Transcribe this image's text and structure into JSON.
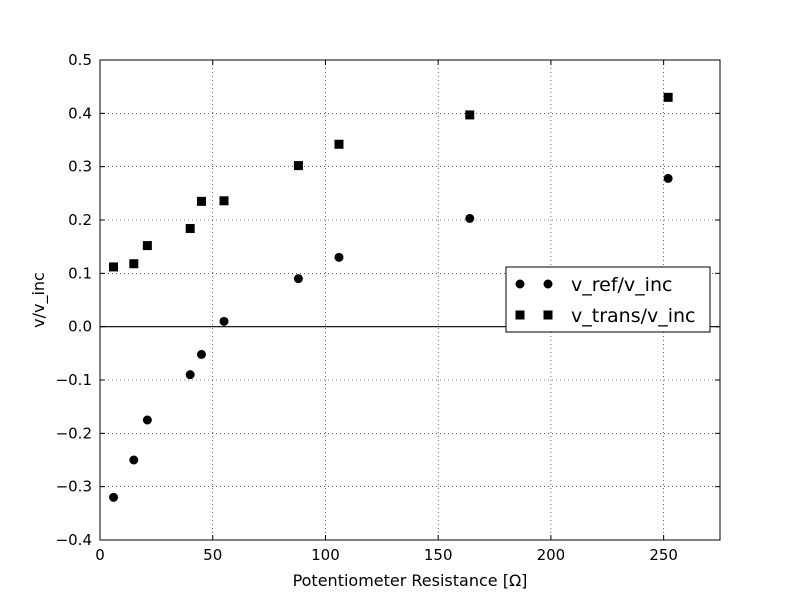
{
  "chart_data": {
    "type": "scatter",
    "xlabel": "Potentiometer Resistance [Ω]",
    "ylabel": "v/v_inc",
    "xlim": [
      0,
      275
    ],
    "ylim": [
      -0.4,
      0.5
    ],
    "x_ticks": [
      0,
      50,
      100,
      150,
      200,
      250
    ],
    "y_ticks": [
      -0.4,
      -0.3,
      -0.2,
      -0.1,
      0.0,
      0.1,
      0.2,
      0.3,
      0.4,
      0.5
    ],
    "x_tick_labels": [
      "0",
      "50",
      "100",
      "150",
      "200",
      "250"
    ],
    "y_tick_labels": [
      "−0.4",
      "−0.3",
      "−0.2",
      "−0.1",
      "0.0",
      "0.1",
      "0.2",
      "0.3",
      "0.4",
      "0.5"
    ],
    "grid": true,
    "zero_line": true,
    "legend_position": "center-right",
    "series": [
      {
        "name": "v_ref/v_inc",
        "marker": "circle",
        "color": "#000000",
        "x": [
          6,
          15,
          21,
          40,
          45,
          55,
          88,
          106,
          164,
          252
        ],
        "y": [
          -0.32,
          -0.25,
          -0.175,
          -0.09,
          -0.052,
          0.01,
          0.09,
          0.13,
          0.203,
          0.278
        ]
      },
      {
        "name": "v_trans/v_inc",
        "marker": "square",
        "color": "#000000",
        "x": [
          6,
          15,
          21,
          40,
          45,
          55,
          88,
          106,
          164,
          252
        ],
        "y": [
          0.112,
          0.118,
          0.152,
          0.184,
          0.235,
          0.236,
          0.302,
          0.342,
          0.397,
          0.43
        ]
      }
    ]
  }
}
